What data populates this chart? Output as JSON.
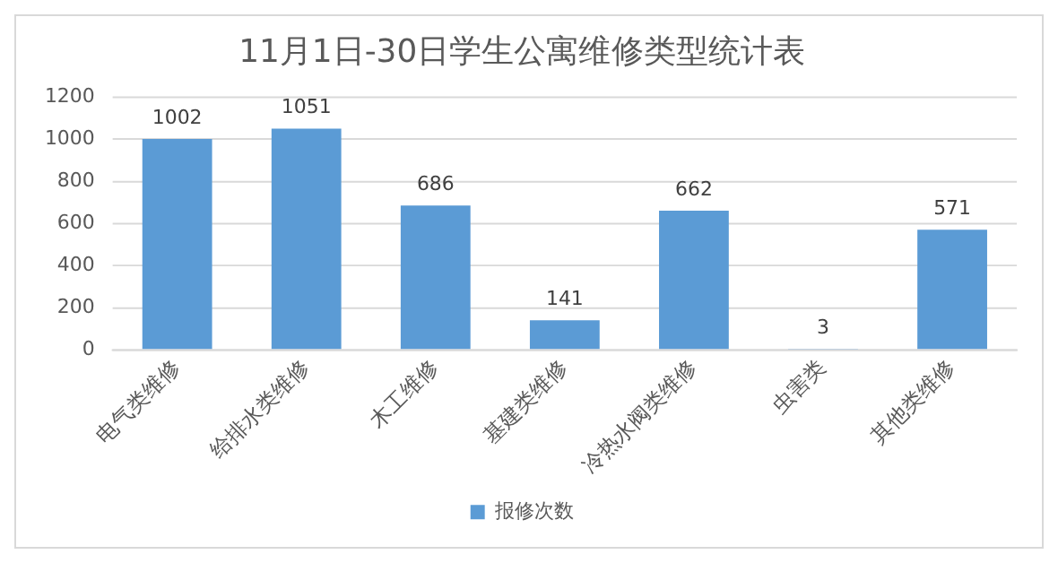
{
  "chart_data": {
    "type": "bar",
    "title": "11月1日-30日学生公寓维修类型统计表",
    "categories": [
      "电气类维修",
      "给排水类维修",
      "木工维修",
      "基建类维修",
      "冷热水阀类维修",
      "虫害类",
      "其他类维修"
    ],
    "series": [
      {
        "name": "报修次数",
        "color": "#5b9bd5",
        "values": [
          1002,
          1051,
          686,
          141,
          662,
          3,
          571
        ]
      }
    ],
    "ylim": [
      0,
      1200
    ],
    "yticks": [
      0,
      200,
      400,
      600,
      800,
      1000,
      1200
    ],
    "grid": "y",
    "legend": "bottom",
    "data_labels": true
  }
}
